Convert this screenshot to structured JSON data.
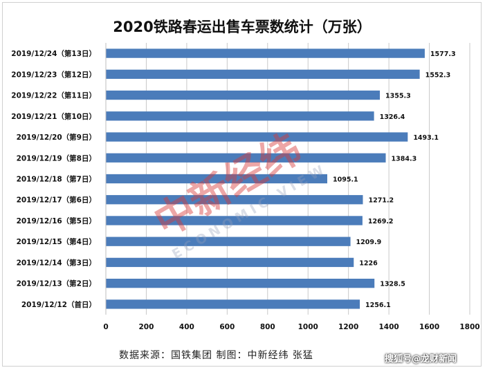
{
  "chart_data": {
    "type": "bar",
    "orientation": "horizontal",
    "title": "2020铁路春运出售车票数统计（万张）",
    "categories": [
      "2019/12/24（第13日）",
      "2019/12/23（第12日）",
      "2019/12/22（第11日）",
      "2019/12/21（第10日）",
      "2019/12/20（第9日）",
      "2019/12/19（第8日）",
      "2019/12/18（第7日）",
      "2019/12/17（第6日）",
      "2019/12/16（第5日）",
      "2019/12/15（第4日）",
      "2019/12/14（第3日）",
      "2019/12/13（第2日）",
      "2019/12/12（首日）"
    ],
    "values": [
      1577.3,
      1552.3,
      1355.3,
      1326.4,
      1493.1,
      1384.3,
      1095.1,
      1271.2,
      1269.2,
      1209.9,
      1226,
      1328.5,
      1256.1
    ],
    "value_labels": [
      "1577.3",
      "1552.3",
      "1355.3",
      "1326.4",
      "1493.1",
      "1384.3",
      "1095.1",
      "1271.2",
      "1269.2",
      "1209.9",
      "1226",
      "1328.5",
      "1256.1"
    ],
    "xlim": [
      0,
      1800
    ],
    "xticks": [
      "0",
      "200",
      "400",
      "600",
      "800",
      "1000",
      "1200",
      "1400",
      "1600",
      "1800"
    ],
    "grid": "vertical",
    "bar_color": "#4b7cba",
    "grid_color": "#c8c8c8"
  },
  "footer": {
    "source": "数据来源：国铁集团  制图：中新经纬  张猛",
    "corner_mark": "搜狐号@龙财新闻"
  },
  "watermark": {
    "cn": "中新经纬",
    "en": "ECONOMIC VIEW",
    "color": "#d63a3a"
  }
}
